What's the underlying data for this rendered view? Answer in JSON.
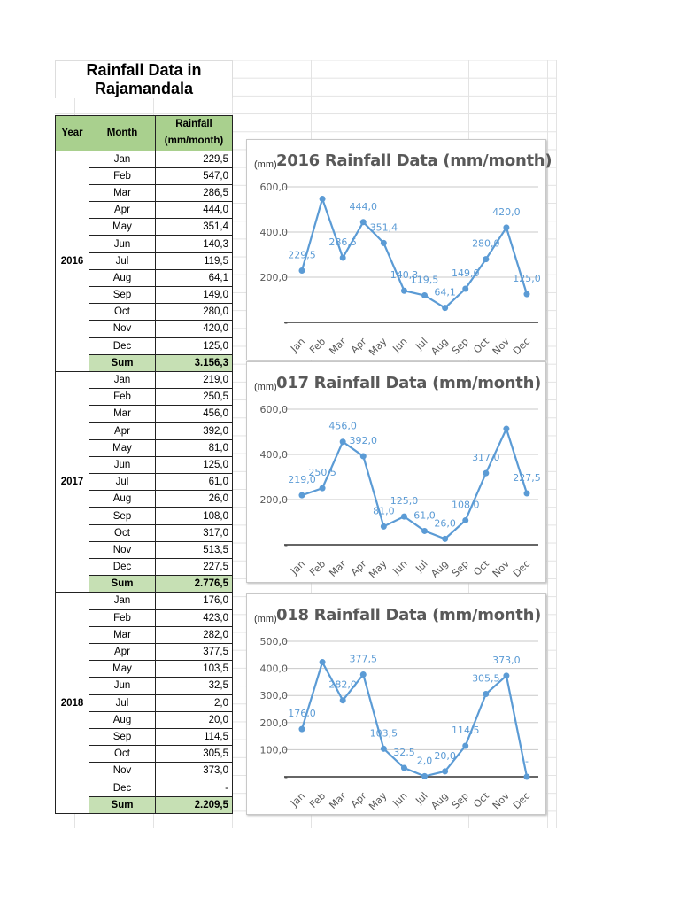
{
  "sheet": {
    "title": "Rainfall Data in Rajamandala",
    "headers": {
      "year": "Year",
      "month": "Month",
      "rainfall": "Rainfall (mm/month)"
    },
    "sum_label": "Sum",
    "years": [
      {
        "year": "2016",
        "sum": "3.156,3",
        "rows": [
          {
            "month": "Jan",
            "value": "229,5"
          },
          {
            "month": "Feb",
            "value": "547,0"
          },
          {
            "month": "Mar",
            "value": "286,5"
          },
          {
            "month": "Apr",
            "value": "444,0"
          },
          {
            "month": "May",
            "value": "351,4"
          },
          {
            "month": "Jun",
            "value": "140,3"
          },
          {
            "month": "Jul",
            "value": "119,5"
          },
          {
            "month": "Aug",
            "value": "64,1"
          },
          {
            "month": "Sep",
            "value": "149,0"
          },
          {
            "month": "Oct",
            "value": "280,0"
          },
          {
            "month": "Nov",
            "value": "420,0"
          },
          {
            "month": "Dec",
            "value": "125,0"
          }
        ]
      },
      {
        "year": "2017",
        "sum": "2.776,5",
        "rows": [
          {
            "month": "Jan",
            "value": "219,0"
          },
          {
            "month": "Feb",
            "value": "250,5"
          },
          {
            "month": "Mar",
            "value": "456,0"
          },
          {
            "month": "Apr",
            "value": "392,0"
          },
          {
            "month": "May",
            "value": "81,0"
          },
          {
            "month": "Jun",
            "value": "125,0"
          },
          {
            "month": "Jul",
            "value": "61,0"
          },
          {
            "month": "Aug",
            "value": "26,0"
          },
          {
            "month": "Sep",
            "value": "108,0"
          },
          {
            "month": "Oct",
            "value": "317,0"
          },
          {
            "month": "Nov",
            "value": "513,5"
          },
          {
            "month": "Dec",
            "value": "227,5"
          }
        ]
      },
      {
        "year": "2018",
        "sum": "2.209,5",
        "rows": [
          {
            "month": "Jan",
            "value": "176,0"
          },
          {
            "month": "Feb",
            "value": "423,0"
          },
          {
            "month": "Mar",
            "value": "282,0"
          },
          {
            "month": "Apr",
            "value": "377,5"
          },
          {
            "month": "May",
            "value": "103,5"
          },
          {
            "month": "Jun",
            "value": "32,5"
          },
          {
            "month": "Jul",
            "value": "2,0"
          },
          {
            "month": "Aug",
            "value": "20,0"
          },
          {
            "month": "Sep",
            "value": "114,5"
          },
          {
            "month": "Oct",
            "value": "305,5"
          },
          {
            "month": "Nov",
            "value": "373,0"
          },
          {
            "month": "Dec",
            "value": "-"
          }
        ]
      }
    ]
  },
  "colors": {
    "line": "#5b9bd5",
    "header_fill": "#a9d08e",
    "sum_fill": "#c6e0b4"
  },
  "chart_data": [
    {
      "type": "line",
      "title": "2016 Rainfall Data (mm/month)",
      "ylabel": "(mm)",
      "ylim": [
        0,
        600
      ],
      "yticks": [
        "-",
        "200,0",
        "400,0",
        "600,0"
      ],
      "ytick_values": [
        0,
        200,
        400,
        600
      ],
      "grid": true,
      "categories": [
        "Jan",
        "Feb",
        "Mar",
        "Apr",
        "May",
        "Jun",
        "Jul",
        "Aug",
        "Sep",
        "Oct",
        "Nov",
        "Dec"
      ],
      "values": [
        229.5,
        547.0,
        286.5,
        444.0,
        351.4,
        140.3,
        119.5,
        64.1,
        149.0,
        280.0,
        420.0,
        125.0
      ],
      "data_labels": [
        "229,5",
        "",
        "286,5",
        "444,0",
        "351,4",
        "140,3",
        "119,5",
        "64,1",
        "149,0",
        "280,0",
        "420,0",
        "125,0"
      ]
    },
    {
      "type": "line",
      "title": "017 Rainfall Data (mm/month)",
      "ylabel": "(mm)",
      "ylim": [
        0,
        600
      ],
      "yticks": [
        "-",
        "200,0",
        "400,0",
        "600,0"
      ],
      "ytick_values": [
        0,
        200,
        400,
        600
      ],
      "grid": true,
      "categories": [
        "Jan",
        "Feb",
        "Mar",
        "Apr",
        "May",
        "Jun",
        "Jul",
        "Aug",
        "Sep",
        "Oct",
        "Nov",
        "Dec"
      ],
      "values": [
        219.0,
        250.5,
        456.0,
        392.0,
        81.0,
        125.0,
        61.0,
        26.0,
        108.0,
        317.0,
        513.5,
        227.5
      ],
      "data_labels": [
        "219,0",
        "250,5",
        "456,0",
        "392,0",
        "81,0",
        "125,0",
        "61,0",
        "26,0",
        "108,0",
        "317,0",
        "",
        "227,5"
      ]
    },
    {
      "type": "line",
      "title": "018 Rainfall Data (mm/month)",
      "ylabel": "(mm)",
      "ylim": [
        0,
        500
      ],
      "yticks": [
        "-",
        "100,0",
        "200,0",
        "300,0",
        "400,0",
        "500,0"
      ],
      "ytick_values": [
        0,
        100,
        200,
        300,
        400,
        500
      ],
      "grid": true,
      "categories": [
        "Jan",
        "Feb",
        "Mar",
        "Apr",
        "May",
        "Jun",
        "Jul",
        "Aug",
        "Sep",
        "Oct",
        "Nov",
        "Dec"
      ],
      "values": [
        176.0,
        423.0,
        282.0,
        377.5,
        103.5,
        32.5,
        2.0,
        20.0,
        114.5,
        305.5,
        373.0,
        0
      ],
      "data_labels": [
        "176,0",
        "",
        "282,0",
        "377,5",
        "103,5",
        "32,5",
        "2,0",
        "20,0",
        "114,5",
        "305,5",
        "373,0",
        "-"
      ]
    }
  ]
}
